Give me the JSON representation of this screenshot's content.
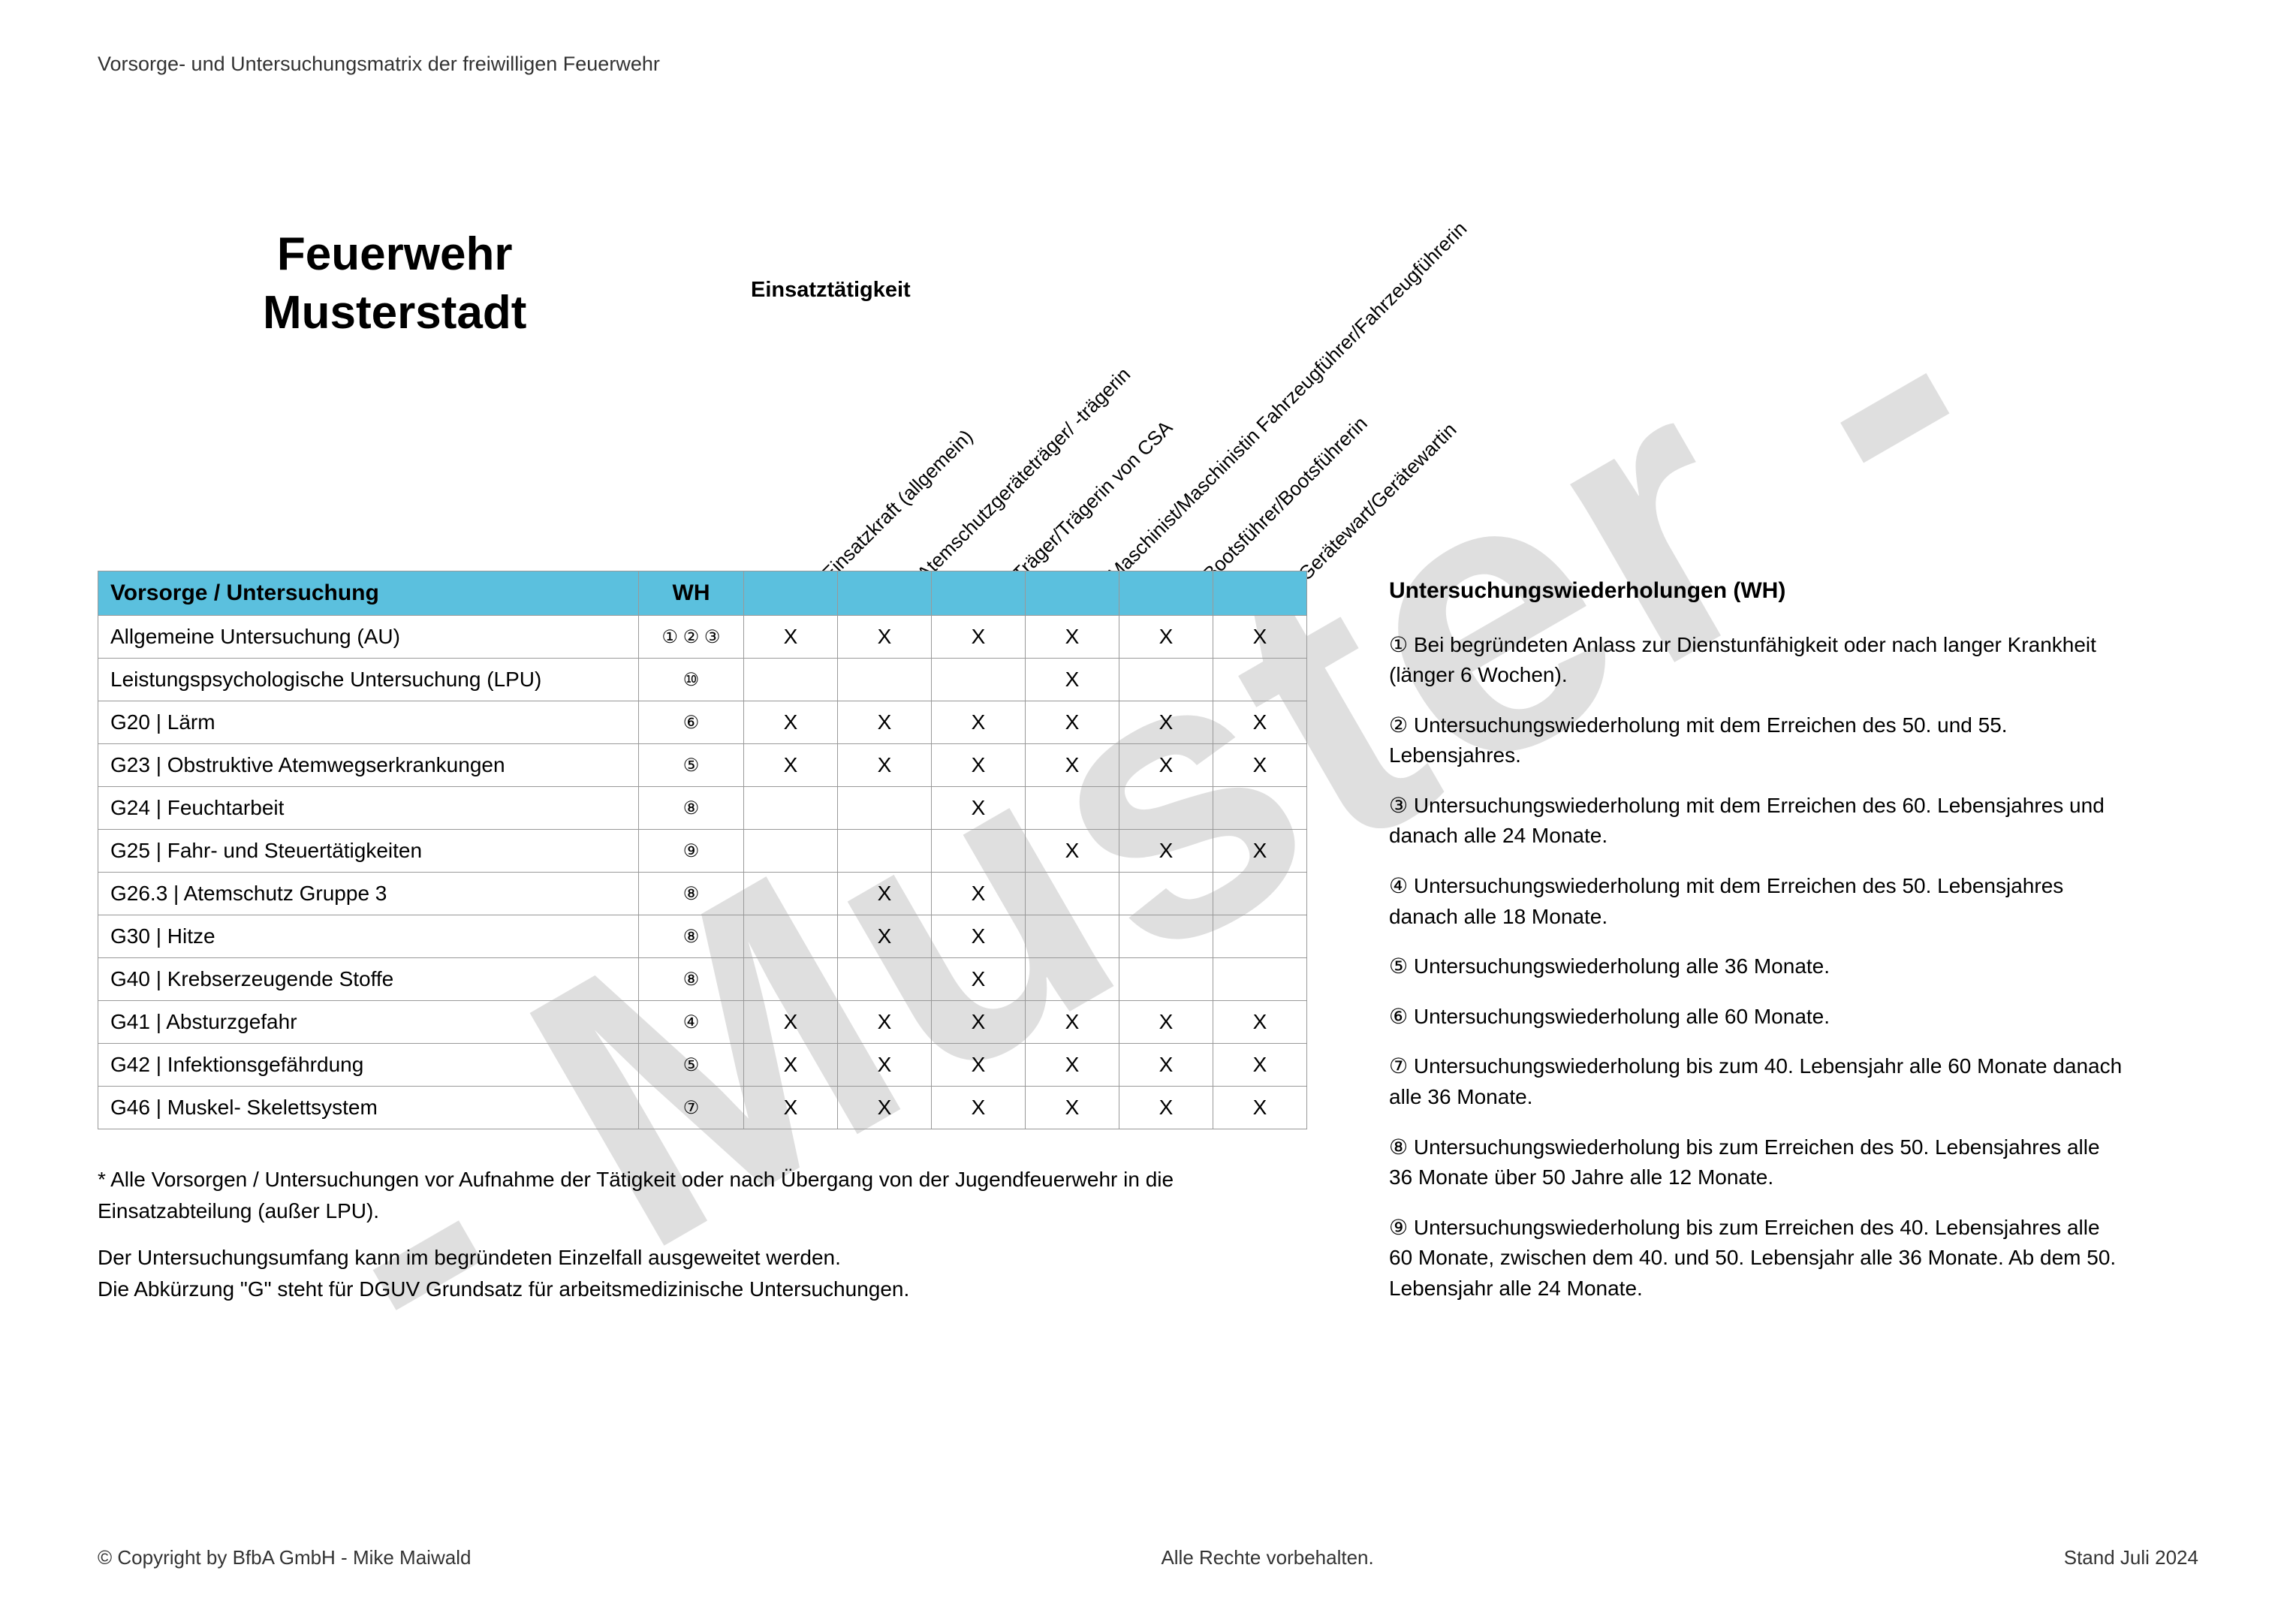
{
  "watermark": "- Muster -",
  "page_header": "Vorsorge- und Untersuchungsmatrix der freiwilligen Feuerwehr",
  "title_line1": "Feuerwehr",
  "title_line2": "Musterstadt",
  "activity_label": "Einsatztätigkeit",
  "table": {
    "header_label": "Vorsorge / Untersuchung",
    "wh_label": "WH",
    "activities": [
      "Einsatzkraft (allgemein)",
      "Atemschutzgeräteträger/ -trägerin",
      "Träger/Trägerin von CSA",
      "Maschinist/Maschinistin Fahrzeugführer/Fahrzeugführerin",
      "Bootsführer/Bootsführerin",
      "Gerätewart/Gerätewartin"
    ],
    "rows": [
      {
        "name": "Allgemeine Untersuchung (AU)",
        "wh": "① ② ③",
        "marks": [
          "X",
          "X",
          "X",
          "X",
          "X",
          "X"
        ]
      },
      {
        "name": "Leistungspsychologische Untersuchung (LPU)",
        "wh": "⑩",
        "marks": [
          "",
          "",
          "",
          "X",
          "",
          ""
        ]
      },
      {
        "name": "G20 | Lärm",
        "wh": "⑥",
        "marks": [
          "X",
          "X",
          "X",
          "X",
          "X",
          "X"
        ]
      },
      {
        "name": "G23 | Obstruktive Atemwegserkrankungen",
        "wh": "⑤",
        "marks": [
          "X",
          "X",
          "X",
          "X",
          "X",
          "X"
        ]
      },
      {
        "name": "G24 | Feuchtarbeit",
        "wh": "⑧",
        "marks": [
          "",
          "",
          "X",
          "",
          "",
          ""
        ]
      },
      {
        "name": "G25 | Fahr- und Steuertätigkeiten",
        "wh": "⑨",
        "marks": [
          "",
          "",
          "",
          "X",
          "X",
          "X"
        ]
      },
      {
        "name": "G26.3 | Atemschutz Gruppe 3",
        "wh": "⑧",
        "marks": [
          "",
          "X",
          "X",
          "",
          "",
          ""
        ]
      },
      {
        "name": "G30 | Hitze",
        "wh": "⑧",
        "marks": [
          "",
          "X",
          "X",
          "",
          "",
          ""
        ]
      },
      {
        "name": "G40 | Krebserzeugende Stoffe",
        "wh": "⑧",
        "marks": [
          "",
          "",
          "X",
          "",
          "",
          ""
        ]
      },
      {
        "name": "G41 | Absturzgefahr",
        "wh": "④",
        "marks": [
          "X",
          "X",
          "X",
          "X",
          "X",
          "X"
        ]
      },
      {
        "name": "G42 | Infektionsgefährdung",
        "wh": "⑤",
        "marks": [
          "X",
          "X",
          "X",
          "X",
          "X",
          "X"
        ]
      },
      {
        "name": "G46 | Muskel- Skelettsystem",
        "wh": "⑦",
        "marks": [
          "X",
          "X",
          "X",
          "X",
          "X",
          "X"
        ]
      }
    ]
  },
  "footnote_star": "* Alle Vorsorgen / Untersuchungen vor Aufnahme der Tätigkeit oder nach Übergang von der Jugendfeuerwehr in die Einsatzabteilung (außer LPU).",
  "footnote_extra1": "Der Untersuchungsumfang kann im begründeten Einzelfall ausgeweitet werden.",
  "footnote_extra2": "Die Abkürzung \"G\" steht für DGUV Grundsatz für arbeitsmedizinische Untersuchungen.",
  "wh_panel": {
    "title": "Untersuchungswiederholungen (WH)",
    "items": [
      "① Bei begründeten Anlass zur Dienstunfähigkeit oder nach langer Krankheit (länger 6 Wochen).",
      "② Untersuchungswiederholung mit dem Erreichen des 50. und 55. Lebensjahres.",
      "③ Untersuchungswiederholung mit dem Erreichen des 60. Lebensjahres und danach alle 24 Monate.",
      "④ Untersuchungswiederholung mit dem Erreichen des 50. Lebensjahres danach alle 18 Monate.",
      "⑤ Untersuchungswiederholung alle 36 Monate.",
      "⑥ Untersuchungswiederholung alle 60 Monate.",
      "⑦ Untersuchungswiederholung bis zum 40. Lebensjahr alle 60 Monate danach alle 36 Monate.",
      "⑧ Untersuchungswiederholung bis zum Erreichen des 50. Lebensjahres alle 36 Monate über 50 Jahre alle 12 Monate.",
      "⑨ Untersuchungswiederholung bis zum Erreichen des 40. Lebensjahres alle 60 Monate, zwischen dem 40. und 50. Lebensjahr alle 36 Monate. Ab dem 50. Lebensjahr alle 24 Monate."
    ]
  },
  "footer": {
    "left": "© Copyright by BfbA GmbH - Mike Maiwald",
    "center": "Alle Rechte vorbehalten.",
    "right": "Stand Juli 2024"
  },
  "colors": {
    "header_bg": "#5bc0de",
    "watermark": "rgba(128,128,128,0.25)",
    "border": "#999999",
    "text": "#000000"
  }
}
